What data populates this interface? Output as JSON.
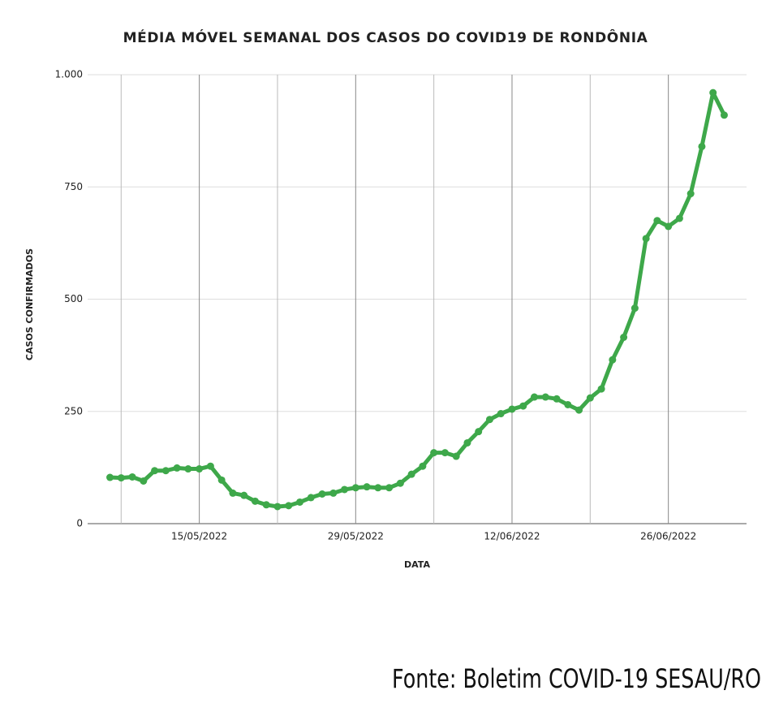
{
  "chart_data": {
    "type": "line",
    "title": "MÉDIA MÓVEL SEMANAL DOS CASOS DO COVID19 DE RONDÔNIA",
    "xlabel": "DATA",
    "ylabel": "CASOS CONFIRMADOS",
    "source": "Fonte: Boletim COVID-19 SESAU/RO",
    "x": [
      "2022-05-07",
      "2022-05-08",
      "2022-05-09",
      "2022-05-10",
      "2022-05-11",
      "2022-05-12",
      "2022-05-13",
      "2022-05-14",
      "2022-05-15",
      "2022-05-16",
      "2022-05-17",
      "2022-05-18",
      "2022-05-19",
      "2022-05-20",
      "2022-05-21",
      "2022-05-22",
      "2022-05-23",
      "2022-05-24",
      "2022-05-25",
      "2022-05-26",
      "2022-05-27",
      "2022-05-28",
      "2022-05-29",
      "2022-05-30",
      "2022-05-31",
      "2022-06-01",
      "2022-06-02",
      "2022-06-03",
      "2022-06-04",
      "2022-06-05",
      "2022-06-06",
      "2022-06-07",
      "2022-06-08",
      "2022-06-09",
      "2022-06-10",
      "2022-06-11",
      "2022-06-12",
      "2022-06-13",
      "2022-06-14",
      "2022-06-15",
      "2022-06-16",
      "2022-06-17",
      "2022-06-18",
      "2022-06-19",
      "2022-06-20",
      "2022-06-21",
      "2022-06-22",
      "2022-06-23",
      "2022-06-24",
      "2022-06-25",
      "2022-06-26",
      "2022-06-27",
      "2022-06-28",
      "2022-06-29",
      "2022-06-30",
      "2022-07-01"
    ],
    "series": [
      {
        "name": "Média móvel",
        "color": "#3ea84a",
        "values": [
          103,
          102,
          104,
          95,
          118,
          118,
          124,
          122,
          122,
          128,
          97,
          68,
          63,
          50,
          42,
          38,
          40,
          48,
          58,
          66,
          68,
          76,
          80,
          82,
          80,
          80,
          90,
          110,
          128,
          158,
          158,
          150,
          180,
          205,
          232,
          245,
          255,
          262,
          282,
          282,
          278,
          265,
          253,
          280,
          300,
          365,
          415,
          480,
          635,
          675,
          662,
          680,
          735,
          840,
          960,
          910
        ]
      }
    ],
    "xlim": [
      "2022-05-05",
      "2022-07-03"
    ],
    "xticks": [
      {
        "value": "2022-05-08",
        "label": null
      },
      {
        "value": "2022-05-15",
        "label": "15/05/2022"
      },
      {
        "value": "2022-05-22",
        "label": null
      },
      {
        "value": "2022-05-29",
        "label": "29/05/2022"
      },
      {
        "value": "2022-06-05",
        "label": null
      },
      {
        "value": "2022-06-12",
        "label": "12/06/2022"
      },
      {
        "value": "2022-06-19",
        "label": null
      },
      {
        "value": "2022-06-26",
        "label": "26/06/2022"
      }
    ],
    "ylim": [
      0,
      1000
    ],
    "yticks": [
      0,
      {
        "value": 250,
        "label": "250"
      },
      500,
      750,
      {
        "value": 1000,
        "label": "1.000"
      }
    ],
    "grid": true
  }
}
